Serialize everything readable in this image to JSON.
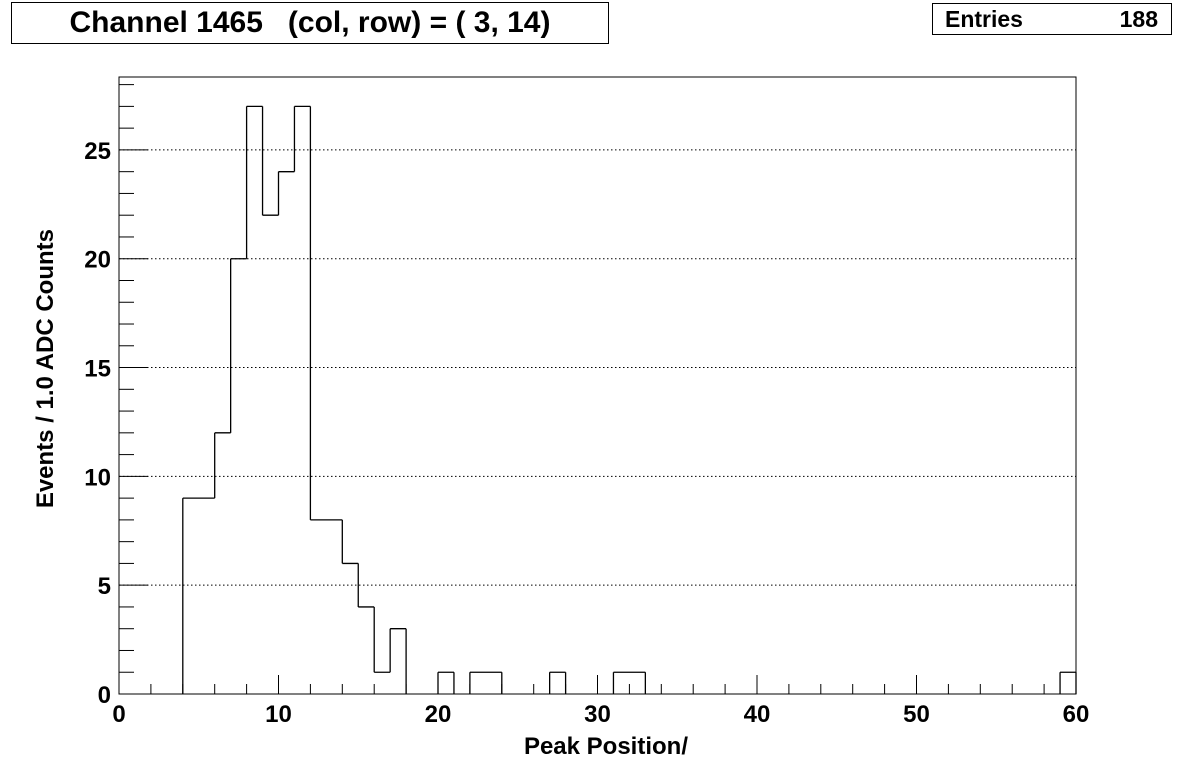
{
  "title": "Channel 1465   (col, row) = ( 3, 14)",
  "stats": {
    "entries_label": "Entries",
    "entries_value": "188"
  },
  "chart_data": {
    "type": "bar",
    "histogram": true,
    "xlabel": "Peak Position/",
    "ylabel": "Events / 1.0 ADC Counts",
    "xlim": [
      0,
      60
    ],
    "ylim": [
      0,
      28.35
    ],
    "xticks": [
      0,
      10,
      20,
      30,
      40,
      50,
      60
    ],
    "yticks": [
      0,
      5,
      10,
      15,
      20,
      25
    ],
    "grid_y": true,
    "bin_width": 1,
    "bins": [
      {
        "x0": 4,
        "count": 9
      },
      {
        "x0": 5,
        "count": 9
      },
      {
        "x0": 6,
        "count": 12
      },
      {
        "x0": 7,
        "count": 20
      },
      {
        "x0": 8,
        "count": 27
      },
      {
        "x0": 9,
        "count": 22
      },
      {
        "x0": 10,
        "count": 24
      },
      {
        "x0": 11,
        "count": 27
      },
      {
        "x0": 12,
        "count": 8
      },
      {
        "x0": 13,
        "count": 8
      },
      {
        "x0": 14,
        "count": 6
      },
      {
        "x0": 15,
        "count": 4
      },
      {
        "x0": 16,
        "count": 1
      },
      {
        "x0": 17,
        "count": 3
      },
      {
        "x0": 20,
        "count": 1
      },
      {
        "x0": 22,
        "count": 1
      },
      {
        "x0": 23,
        "count": 1
      },
      {
        "x0": 27,
        "count": 1
      },
      {
        "x0": 31,
        "count": 1
      },
      {
        "x0": 32,
        "count": 1
      },
      {
        "x0": 59,
        "count": 1
      }
    ]
  }
}
